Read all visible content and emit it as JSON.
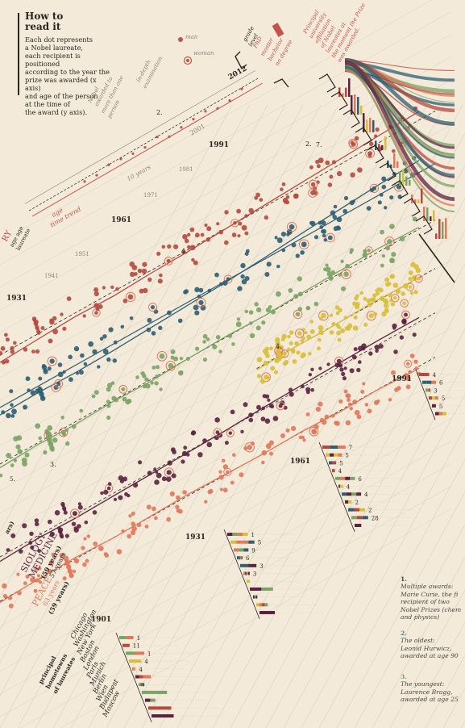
{
  "how_to_read": {
    "title_line1": "How to",
    "title_line2": "read it",
    "body_lines": [
      "Each dot represents",
      "a Nobel laureate,",
      "each recipient is positioned",
      "according to the year the",
      "prize was awarded (x axis)",
      "and age of the person",
      "at the time of",
      "the award (y axis)."
    ]
  },
  "legend": {
    "man": "man",
    "woman": "woman",
    "age_time_trend": [
      "age",
      "time trend"
    ],
    "ten_years": "10 years",
    "multiple_awards": [
      "Nobel",
      "awarded to",
      "more than one",
      "person"
    ],
    "in_depth": [
      "in-depth",
      "examination"
    ],
    "grade_level": [
      "grade",
      "level"
    ],
    "grades": [
      "PhD",
      "master",
      "bachelor",
      "no degree"
    ],
    "principal_university": [
      "Principal",
      "university",
      "affiliation",
      "of Nobel",
      "laureates at",
      "the moment the Prize",
      "was awarded."
    ]
  },
  "decade_labels": [
    "1901",
    "1931",
    "1941",
    "1951",
    "1961",
    "1971",
    "1981",
    "1991",
    "2001",
    "2012"
  ],
  "categories": [
    {
      "key": "chemistry",
      "color": "#b44a3f"
    },
    {
      "key": "physics",
      "color": "#2f5e72"
    },
    {
      "key": "literature",
      "color": "#7aa364"
    },
    {
      "key": "economics",
      "color": "#d8bf3a"
    },
    {
      "key": "medicine",
      "color": "#5b2340"
    },
    {
      "key": "peace",
      "color": "#e0785a"
    }
  ],
  "category_labels": {
    "medicine_line1": "SIOLOGY",
    "medicine_line2": "MEDICINE",
    "medicine_avg": "(59 years)",
    "medicine_sub": "57 years",
    "peace_title": "PEACE",
    "peace_sub": "63 years",
    "peace_avg": "(59 years)",
    "chem_partial1": "RY",
    "chem_partial2": "age age",
    "chem_partial3": "laureate",
    "lit_partial": "ars)"
  },
  "annotations": {
    "label_1": "1.",
    "label_2": "2.",
    "label_3": "3.",
    "label_4": "4.",
    "label_7": "7."
  },
  "hometowns": {
    "title": [
      "principal",
      "hometowns",
      "of laureates"
    ],
    "cities": [
      "Chicago",
      "Washington",
      "New York",
      "Boston",
      "London",
      "Paris",
      "Munich",
      "Berlin",
      "Wien",
      "Budapest",
      "Moscow"
    ],
    "counts_1901": [
      "1",
      "11",
      "1",
      "4",
      "4"
    ]
  },
  "bar_counts": {
    "1931": [
      "1",
      "5",
      "9",
      "6",
      "3",
      "3"
    ],
    "1961": [
      "7",
      "5",
      "5",
      "4",
      "6",
      "4",
      "4",
      "2",
      "2",
      "28"
    ],
    "1991": [
      "4",
      "6",
      "3",
      "5",
      "5"
    ]
  },
  "notes": [
    {
      "num": "1.",
      "lines": [
        "Multiple awards:",
        "Marie Curie, the fi",
        "recipient of two",
        "Nobel Prizes (chem",
        "and physics)"
      ]
    },
    {
      "num": "2.",
      "lines": [
        "The oldest:",
        "Leonid Hurwicz,",
        "awarded at age 90"
      ]
    },
    {
      "num": "3.",
      "lines": [
        "The youngest:",
        "Laurence Bragg,",
        "awarded at age 25"
      ]
    }
  ],
  "chart_data": {
    "type": "scatter",
    "title": "",
    "xlabel": "",
    "ylabel": "",
    "x_range": [
      1901,
      2012
    ],
    "ylim": [
      20,
      100
    ],
    "series": [
      {
        "name": "",
        "x": [
          1901,
          1911,
          1921,
          1931,
          1941,
          1951,
          1961,
          1971,
          1981,
          1991,
          2001,
          2012
        ],
        "y": [
          50,
          52,
          54,
          53,
          55,
          56,
          58,
          60,
          62,
          64,
          66,
          68
        ]
      },
      {
        "name": "",
        "x": [
          1901,
          1911,
          1921,
          1931,
          1941,
          1951,
          1961,
          1971,
          1981,
          1991,
          2001,
          2012
        ],
        "y": [
          46,
          47,
          46,
          47,
          49,
          51,
          53,
          56,
          60,
          63,
          66,
          68
        ]
      },
      {
        "name": "",
        "x": [
          1901,
          1911,
          1921,
          1931,
          1941,
          1951,
          1961,
          1971,
          1981,
          1991,
          2001,
          2012
        ],
        "y": [
          60,
          62,
          61,
          63,
          62,
          64,
          65,
          64,
          66,
          67,
          68,
          66
        ]
      },
      {
        "name": "",
        "x": [
          1969,
          1975,
          1981,
          1987,
          1993,
          1999,
          2005,
          2012
        ],
        "y": [
          65,
          66,
          67,
          66,
          67,
          68,
          67,
          67
        ]
      },
      {
        "name": "",
        "x": [
          1901,
          1911,
          1921,
          1931,
          1941,
          1951,
          1961,
          1971,
          1981,
          1991,
          2001,
          2012
        ],
        "y": [
          52,
          54,
          53,
          54,
          55,
          56,
          57,
          59,
          60,
          61,
          62,
          62
        ]
      },
      {
        "name": "",
        "x": [
          1901,
          1911,
          1921,
          1931,
          1941,
          1951,
          1961,
          1971,
          1981,
          1991,
          2001,
          2012
        ],
        "y": [
          60,
          62,
          63,
          61,
          62,
          63,
          62,
          61,
          62,
          60,
          61,
          59
        ]
      }
    ]
  }
}
